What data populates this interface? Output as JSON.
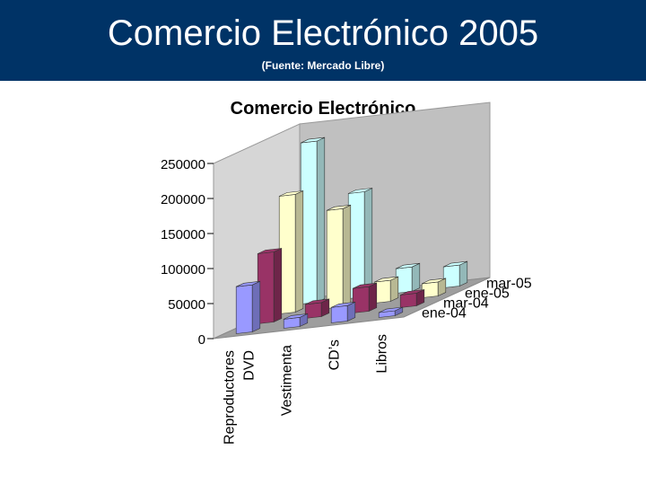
{
  "slide": {
    "title": "Comercio Electrónico 2005",
    "subtitle": "(Fuente: Mercado Libre)",
    "header_color": "#003366"
  },
  "chart_data": {
    "type": "bar",
    "variant": "3d-column",
    "title": "Comercio Electrónico",
    "categories": [
      "Reproductores DVD",
      "Vestimenta",
      "CD’s",
      "Libros"
    ],
    "series": [
      {
        "name": "ene-04",
        "color": "#9999ff",
        "values": [
          67000,
          13000,
          22000,
          7000
        ]
      },
      {
        "name": "mar-04",
        "color": "#993366",
        "values": [
          100000,
          20000,
          35000,
          18000
        ]
      },
      {
        "name": "ene-05",
        "color": "#ffffcc",
        "values": [
          168000,
          140000,
          30000,
          20000
        ]
      },
      {
        "name": "mar-05",
        "color": "#ccffff",
        "values": [
          230000,
          150000,
          35000,
          30000
        ]
      }
    ],
    "ylim": [
      0,
      250000
    ],
    "yticks": [
      "250000",
      "200000",
      "150000",
      "100000",
      "50000",
      "0"
    ],
    "legend_order": [
      "mar-05",
      "ene-05",
      "mar-04",
      "ene-04"
    ],
    "grid": false
  }
}
